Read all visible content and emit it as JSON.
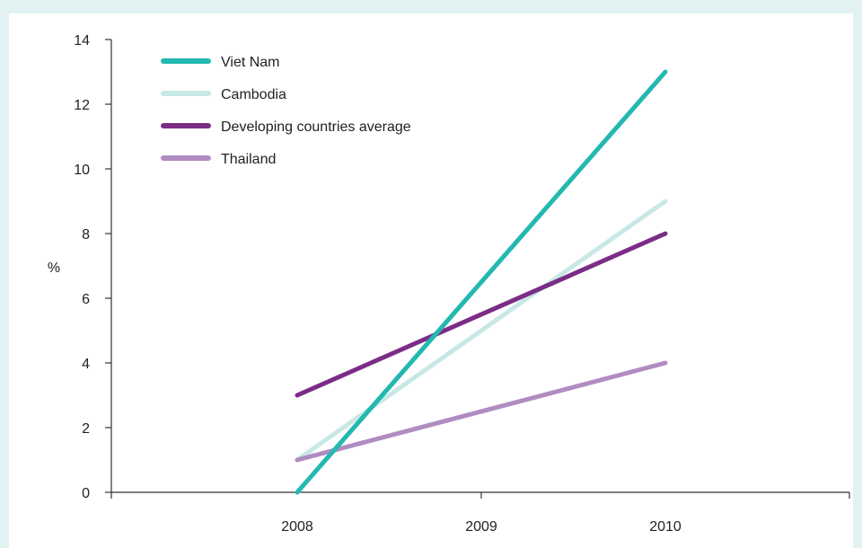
{
  "chart_data": {
    "type": "line",
    "x": [
      "2008",
      "2009",
      "2010"
    ],
    "ylabel": "%",
    "ylim": [
      0,
      14
    ],
    "yticks": [
      0,
      2,
      4,
      6,
      8,
      10,
      12,
      14
    ],
    "grid": false,
    "legend_position": "top-left",
    "series": [
      {
        "name": "Viet Nam",
        "color": "#23b8b0",
        "values": [
          0,
          null,
          13
        ]
      },
      {
        "name": "Cambodia",
        "color": "#c8e8e6",
        "values": [
          1,
          null,
          9
        ]
      },
      {
        "name": "Developing countries average",
        "color": "#7b2d86",
        "values": [
          3,
          null,
          8
        ]
      },
      {
        "name": "Thailand",
        "color": "#b08cc2",
        "values": [
          1,
          null,
          4
        ]
      }
    ]
  }
}
